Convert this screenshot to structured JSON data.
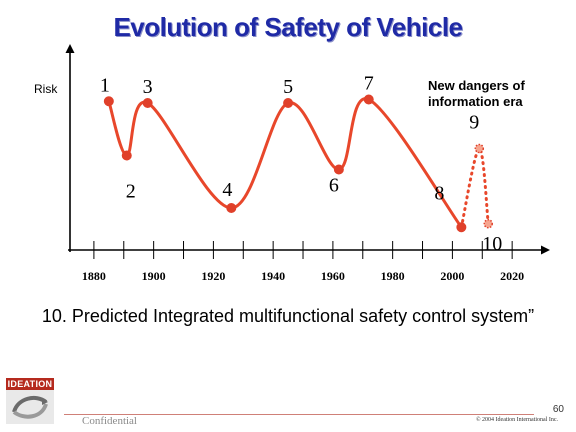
{
  "slide": {
    "title": "Evolution of Safety of Vehicle",
    "footnote": "10. Predicted Integrated multifunctional safety control system”",
    "logo_text": "IDEATION",
    "confidential": "Confidential",
    "copyright": "© 2004 Ideation International Inc.",
    "page_number": "60"
  },
  "colors": {
    "title": "#1f2aa6",
    "curve": "#e8472b",
    "point": "#e0402a"
  },
  "chart_data": {
    "type": "line",
    "ylabel": "Risk",
    "xlabel": "",
    "y_ticks_shown": false,
    "xlim": [
      1872,
      2032
    ],
    "ylim": [
      0,
      100
    ],
    "x_ticks": [
      1880,
      1900,
      1920,
      1940,
      1960,
      1980,
      2000,
      2020
    ],
    "x_tick_labels": [
      "1880",
      "1900",
      "1920",
      "1940",
      "1960",
      "1980",
      "2000",
      "2020"
    ],
    "annotation": "New dangers of information era",
    "series": [
      {
        "style": "solid",
        "points": [
          {
            "label": "1",
            "x": 1885,
            "y": 85
          },
          {
            "label": "2",
            "x": 1891,
            "y": 54
          },
          {
            "label": "3",
            "x": 1898,
            "y": 84
          },
          {
            "label": "4",
            "x": 1926,
            "y": 24
          },
          {
            "label": "5",
            "x": 1945,
            "y": 84
          },
          {
            "label": "6",
            "x": 1962,
            "y": 46
          },
          {
            "label": "7",
            "x": 1972,
            "y": 86
          },
          {
            "label": "8",
            "x": 2003,
            "y": 13
          }
        ]
      },
      {
        "style": "dotted",
        "points": [
          {
            "label": "8",
            "x": 2003,
            "y": 13
          },
          {
            "label": "9",
            "x": 2009,
            "y": 58
          },
          {
            "label": "10",
            "x": 2012,
            "y": 15
          }
        ]
      }
    ]
  }
}
